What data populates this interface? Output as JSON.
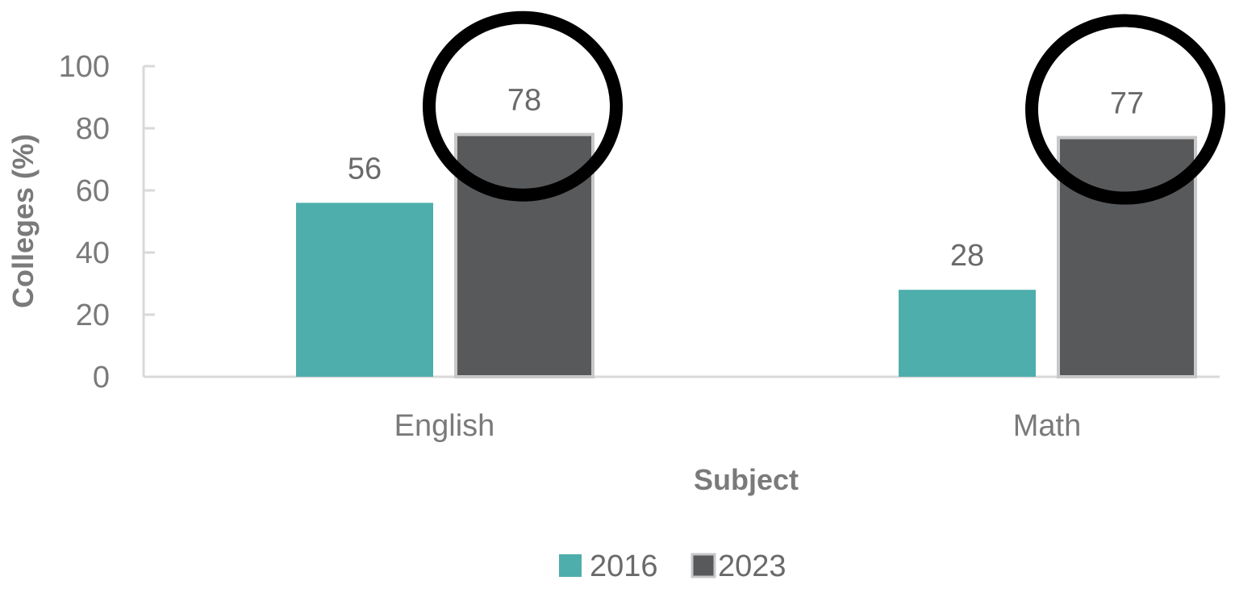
{
  "chart_data": {
    "type": "bar",
    "categories": [
      "English",
      "Math"
    ],
    "series": [
      {
        "name": "2016",
        "values": [
          56,
          28
        ],
        "color": "#4eaeac"
      },
      {
        "name": "2023",
        "values": [
          78,
          77
        ],
        "color": "#58595b"
      }
    ],
    "xlabel": "Subject",
    "ylabel": "Colleges (%)",
    "ylim": [
      0,
      100
    ],
    "yticks": [
      "0",
      "20",
      "40",
      "60",
      "80",
      "100"
    ],
    "legend_position": "bottom",
    "grid": false,
    "annotations": [
      {
        "type": "circle",
        "category": "English",
        "series": "2023",
        "color": "#000000"
      },
      {
        "type": "circle",
        "category": "Math",
        "series": "2023",
        "color": "#000000"
      }
    ]
  }
}
